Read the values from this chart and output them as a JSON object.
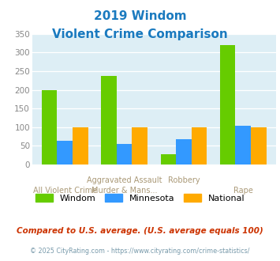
{
  "title_line1": "2019 Windom",
  "title_line2": "Violent Crime Comparison",
  "windom": [
    200,
    238,
    28,
    320
  ],
  "minnesota": [
    63,
    55,
    68,
    103
  ],
  "national": [
    100,
    100,
    100,
    100
  ],
  "colors": {
    "windom": "#66cc00",
    "minnesota": "#3399ff",
    "national": "#ffaa00"
  },
  "ylim": [
    0,
    350
  ],
  "yticks": [
    0,
    50,
    100,
    150,
    200,
    250,
    300,
    350
  ],
  "legend_labels": [
    "Windom",
    "Minnesota",
    "National"
  ],
  "xtick_top": [
    "",
    "Aggravated Assault",
    "",
    "Robbery",
    ""
  ],
  "xtick_bottom": [
    "All Violent Crime",
    "Murder & Mans...",
    "",
    "Rape"
  ],
  "footnote1": "Compared to U.S. average. (U.S. average equals 100)",
  "footnote2": "© 2025 CityRating.com - https://www.cityrating.com/crime-statistics/",
  "bg_color": "#ddeef5",
  "title_color": "#1a7abf",
  "footnote1_color": "#cc3300",
  "footnote2_color": "#7799aa",
  "xtick_color": "#aa9977",
  "ytick_color": "#888888"
}
